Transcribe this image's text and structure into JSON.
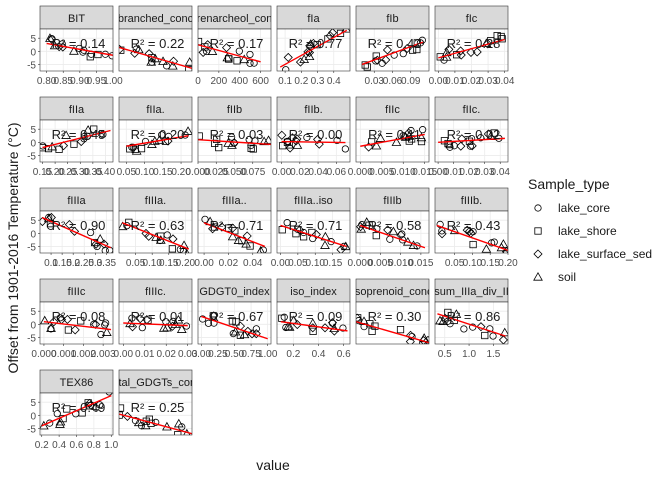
{
  "figure": {
    "xlabel": "value",
    "ylabel": "Offset from 1901-2016 Temperature (°C)"
  },
  "legend": {
    "title": "Sample_type",
    "items": [
      {
        "label": "lake_core",
        "shape": "circle"
      },
      {
        "label": "lake_shore",
        "shape": "square"
      },
      {
        "label": "lake_surface_sed",
        "shape": "diamond"
      },
      {
        "label": "soil",
        "shape": "triangle"
      }
    ]
  },
  "colors": {
    "fit_line": "#ff0000",
    "strip": "#d9d9d9",
    "panel_bg": "#ffffff",
    "grid": "#ebebeb",
    "text": "#1a1a1a"
  },
  "chart_data": {
    "type": "scatter",
    "layout": "facet_wrap",
    "y_ticks": [
      -5,
      0,
      5
    ],
    "ylim": [
      -7.5,
      8.5
    ],
    "facets": [
      {
        "title": "BIT",
        "xlim": [
          0.78,
          1.0
        ],
        "x_ticks": [
          "0.80",
          "0.85",
          "0.90",
          "0.95",
          "1.00"
        ],
        "x_tick_vals": [
          0.8,
          0.85,
          0.9,
          0.95,
          1.0
        ],
        "annotation": "R² = 0.14",
        "fit": [
          [
            0.8,
            3.0
          ],
          [
            1.0,
            -1.5
          ]
        ]
      },
      {
        "title": "branched_conc",
        "xlim": [
          0,
          1
        ],
        "x_ticks": [],
        "x_tick_vals": [],
        "annotation": "R² = 0.22",
        "fit": [
          [
            0.0,
            1.5
          ],
          [
            1.0,
            -6.5
          ]
        ]
      },
      {
        "title": "crenarcheol_conc",
        "xlim": [
          0,
          700
        ],
        "x_ticks": [
          "0",
          "200",
          "400",
          "600"
        ],
        "x_tick_vals": [
          0,
          200,
          400,
          600
        ],
        "annotation": "R² = 0.17",
        "fit": [
          [
            0,
            2.5
          ],
          [
            600,
            -4.0
          ]
        ]
      },
      {
        "title": "fIa",
        "xlim": [
          0.05,
          0.5
        ],
        "x_ticks": [
          "0.1",
          "0.2",
          "0.3",
          "0.4"
        ],
        "x_tick_vals": [
          0.1,
          0.2,
          0.3,
          0.4
        ],
        "annotation": "R² = 0.77",
        "fit": [
          [
            0.07,
            -6.0
          ],
          [
            0.48,
            8.0
          ]
        ]
      },
      {
        "title": "fIb",
        "xlim": [
          0.0,
          0.12
        ],
        "x_ticks": [
          "0.03",
          "0.06",
          "0.09"
        ],
        "x_tick_vals": [
          0.03,
          0.06,
          0.09
        ],
        "annotation": "R² = 0.42",
        "fit": [
          [
            0.01,
            -5.0
          ],
          [
            0.11,
            3.5
          ]
        ]
      },
      {
        "title": "fIc",
        "xlim": [
          -0.002,
          0.042
        ],
        "x_ticks": [
          "0.00",
          "0.01",
          "0.02",
          "0.03",
          "0.04"
        ],
        "x_tick_vals": [
          0.0,
          0.01,
          0.02,
          0.03,
          0.04
        ],
        "annotation": "R² = 0.28",
        "fit": [
          [
            0.0,
            -2.5
          ],
          [
            0.04,
            4.5
          ]
        ]
      },
      {
        "title": "fIIa",
        "xlim": [
          0.14,
          0.43
        ],
        "x_ticks": [
          "0.15",
          "0.20",
          "0.25",
          "0.30",
          "0.35",
          "0.40"
        ],
        "x_tick_vals": [
          0.15,
          0.2,
          0.25,
          0.3,
          0.35,
          0.4
        ],
        "annotation": "R² = 0.45",
        "fit": [
          [
            0.15,
            -2.0
          ],
          [
            0.42,
            4.5
          ]
        ]
      },
      {
        "title": "fIIa.",
        "xlim": [
          0.03,
          0.23
        ],
        "x_ticks": [
          "0.05",
          "0.10",
          "0.15",
          "0.20"
        ],
        "x_tick_vals": [
          0.05,
          0.1,
          0.15,
          0.2
        ],
        "annotation": "R² = 0.20",
        "fit": [
          [
            0.05,
            -1.5
          ],
          [
            0.22,
            2.5
          ]
        ]
      },
      {
        "title": "fIIb",
        "xlim": [
          0,
          0.1
        ],
        "x_ticks": [
          "0.000",
          "0.025",
          "0.050",
          "0.075"
        ],
        "x_tick_vals": [
          0.0,
          0.025,
          0.05,
          0.075
        ],
        "annotation": "R² = 0.03",
        "fit": [
          [
            0.0,
            1.0
          ],
          [
            0.1,
            -0.8
          ]
        ]
      },
      {
        "title": "fIIb.",
        "xlim": [
          -0.005,
          0.075
        ],
        "x_ticks": [
          "0.00",
          "0.02",
          "0.04",
          "0.06"
        ],
        "x_tick_vals": [
          0.0,
          0.02,
          0.04,
          0.06
        ],
        "annotation": "R² = 0.00",
        "fit": [
          [
            0.0,
            0.3
          ],
          [
            0.07,
            -0.1
          ]
        ]
      },
      {
        "title": "fIIc",
        "xlim": [
          -0.001,
          0.016
        ],
        "x_ticks": [
          "0.000",
          "0.005",
          "0.010",
          "0.015"
        ],
        "x_tick_vals": [
          0.0,
          0.005,
          0.01,
          0.015
        ],
        "annotation": "R² = 0.11",
        "fit": [
          [
            0.0,
            -1.5
          ],
          [
            0.015,
            3.0
          ]
        ]
      },
      {
        "title": "fIIc.",
        "xlim": [
          -0.002,
          0.045
        ],
        "x_ticks": [
          "0.00",
          "0.01",
          "0.02",
          "0.03",
          "0.04"
        ],
        "x_tick_vals": [
          0.0,
          0.01,
          0.02,
          0.03,
          0.04
        ],
        "annotation": "R² = 0.02",
        "fit": [
          [
            0.0,
            0.0
          ],
          [
            0.043,
            1.5
          ]
        ]
      },
      {
        "title": "fIIIa",
        "xlim": [
          0.05,
          0.38
        ],
        "x_ticks": [
          "0.1",
          "0.15",
          "0.2",
          "0.25",
          "0.3",
          "0.35"
        ],
        "x_tick_vals": [
          0.1,
          0.15,
          0.2,
          0.25,
          0.3,
          0.35
        ],
        "annotation": "R² = 0.90",
        "fit": [
          [
            0.06,
            6.0
          ],
          [
            0.37,
            -5.5
          ]
        ]
      },
      {
        "title": "fIIIa.",
        "xlim": [
          0.0,
          0.22
        ],
        "x_ticks": [
          "0.05",
          "0.10",
          "0.15",
          "0.20"
        ],
        "x_tick_vals": [
          0.05,
          0.1,
          0.15,
          0.2
        ],
        "annotation": "R² = 0.63",
        "fit": [
          [
            0.01,
            4.0
          ],
          [
            0.21,
            -6.0
          ]
        ]
      },
      {
        "title": "fIIIa..",
        "xlim": [
          -0.005,
          0.055
        ],
        "x_ticks": [
          "0.00",
          "0.02",
          "0.04"
        ],
        "x_tick_vals": [
          0.0,
          0.02,
          0.04
        ],
        "annotation": "R² = 0.71",
        "fit": [
          [
            0.0,
            4.0
          ],
          [
            0.05,
            -5.0
          ]
        ]
      },
      {
        "title": "fIIIa..iso",
        "xlim": [
          -0.01,
          0.2
        ],
        "x_ticks": [
          "0.00",
          "0.05",
          "0.10",
          "0.15"
        ],
        "x_tick_vals": [
          0.0,
          0.05,
          0.1,
          0.15
        ],
        "annotation": "R² = 0.71",
        "fit": [
          [
            0.0,
            3.0
          ],
          [
            0.19,
            -5.0
          ]
        ]
      },
      {
        "title": "fIIIb",
        "xlim": [
          -0.001,
          0.017
        ],
        "x_ticks": [
          "0.000",
          "0.005",
          "0.010",
          "0.015"
        ],
        "x_tick_vals": [
          0.0,
          0.005,
          0.01,
          0.015
        ],
        "annotation": "R² = 0.58",
        "fit": [
          [
            0.0,
            3.0
          ],
          [
            0.016,
            -5.5
          ]
        ]
      },
      {
        "title": "fIIIb.",
        "xlim": [
          -0.005,
          0.2
        ],
        "x_ticks": [
          "0.05",
          "0.10",
          "0.15",
          "0.20"
        ],
        "x_tick_vals": [
          0.05,
          0.1,
          0.15,
          0.2
        ],
        "annotation": "R² = 0.43",
        "fit": [
          [
            0.0,
            3.0
          ],
          [
            0.2,
            -6.5
          ]
        ]
      },
      {
        "title": "fIIIc",
        "xlim": [
          -0.0002,
          0.0035
        ],
        "x_ticks": [
          "0.000",
          "0.001",
          "0.002",
          "0.003"
        ],
        "x_tick_vals": [
          0.0,
          0.001,
          0.002,
          0.003
        ],
        "annotation": "R² = 0.08",
        "fit": [
          [
            0.0,
            1.0
          ],
          [
            0.0034,
            -2.0
          ]
        ]
      },
      {
        "title": "fIIIc.",
        "xlim": [
          -0.002,
          0.032
        ],
        "x_ticks": [
          "0.00",
          "0.01",
          "0.02",
          "0.03"
        ],
        "x_tick_vals": [
          0.0,
          0.01,
          0.02,
          0.03
        ],
        "annotation": "R² = 0.01",
        "fit": [
          [
            0.0,
            0.5
          ],
          [
            0.03,
            -0.5
          ]
        ]
      },
      {
        "title": "GDGT0_index",
        "xlim": [
          -0.05,
          1.05
        ],
        "x_ticks": [
          "0.00",
          "0.25",
          "0.50",
          "0.75",
          "1.00"
        ],
        "x_tick_vals": [
          0.0,
          0.25,
          0.5,
          0.75,
          1.0
        ],
        "annotation": "R² = 0.67",
        "fit": [
          [
            0.0,
            3.0
          ],
          [
            1.0,
            -5.5
          ]
        ]
      },
      {
        "title": "iso_index",
        "xlim": [
          0.07,
          0.65
        ],
        "x_ticks": [
          "0.2",
          "0.4",
          "0.6"
        ],
        "x_tick_vals": [
          0.2,
          0.4,
          0.6
        ],
        "annotation": "R² = 0.09",
        "fit": [
          [
            0.1,
            1.0
          ],
          [
            0.63,
            -2.5
          ]
        ]
      },
      {
        "title": "isoprenoid_conc",
        "xlim": [
          0,
          1
        ],
        "x_ticks": [],
        "x_tick_vals": [],
        "annotation": "R² = 0.30",
        "fit": [
          [
            0.0,
            1.0
          ],
          [
            1.0,
            -7.0
          ]
        ]
      },
      {
        "title": "sum_IIIa_div_II",
        "xlim": [
          0.3,
          1.8
        ],
        "x_ticks": [
          "0.5",
          "1.0",
          "1.5"
        ],
        "x_tick_vals": [
          0.5,
          1.0,
          1.5
        ],
        "annotation": "R² = 0.86",
        "fit": [
          [
            0.35,
            4.0
          ],
          [
            1.75,
            -4.5
          ]
        ]
      },
      {
        "title": "TEX86",
        "xlim": [
          0.18,
          1.02
        ],
        "x_ticks": [
          "0.2",
          "0.4",
          "0.6",
          "0.8",
          "1.0"
        ],
        "x_tick_vals": [
          0.2,
          0.4,
          0.6,
          0.8,
          1.0
        ],
        "annotation": "R² = 0.49",
        "fit": [
          [
            0.2,
            -4.0
          ],
          [
            1.0,
            7.5
          ]
        ]
      },
      {
        "title": "total_GDGTs_conc",
        "xlim": [
          0,
          1
        ],
        "x_ticks": [],
        "x_tick_vals": [],
        "annotation": "R² = 0.25",
        "fit": [
          [
            0.0,
            0.5
          ],
          [
            1.0,
            -7.0
          ]
        ]
      }
    ]
  }
}
